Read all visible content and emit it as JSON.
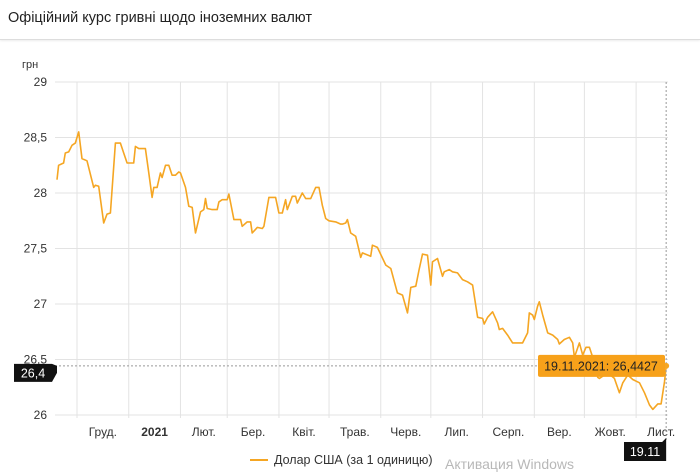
{
  "header": {
    "title": "Офіційний курс гривні щодо іноземних валют"
  },
  "colors": {
    "series": "#f5a623",
    "tooltip_bg": "#f7a11a",
    "crosshair_label_bg": "#111111",
    "grid": "#e3e3e3"
  },
  "watermark": "Активация Windows",
  "chart_data": {
    "type": "line",
    "title": "",
    "ylabel": "грн",
    "xlabel": "",
    "ylim": [
      26,
      29
    ],
    "xlim": [
      "2020-11-19",
      "2021-11-19"
    ],
    "grid": true,
    "legend_placement": "bottom",
    "y_ticks": [
      {
        "value": 26,
        "label": "26"
      },
      {
        "value": 26.5,
        "label": "26,5"
      },
      {
        "value": 27,
        "label": "27"
      },
      {
        "value": 27.5,
        "label": "27,5"
      },
      {
        "value": 28,
        "label": "28"
      },
      {
        "value": 28.5,
        "label": "28,5"
      },
      {
        "value": 29,
        "label": "29"
      }
    ],
    "x_ticks": [
      {
        "month": "2020-12",
        "label": "Груд.",
        "bold": false
      },
      {
        "month": "2021-01",
        "label": "2021",
        "bold": true
      },
      {
        "month": "2021-02",
        "label": "Лют.",
        "bold": false
      },
      {
        "month": "2021-03",
        "label": "Бер.",
        "bold": false
      },
      {
        "month": "2021-04",
        "label": "Квіт.",
        "bold": false
      },
      {
        "month": "2021-05",
        "label": "Трав.",
        "bold": false
      },
      {
        "month": "2021-06",
        "label": "Черв.",
        "bold": false
      },
      {
        "month": "2021-07",
        "label": "Лип.",
        "bold": false
      },
      {
        "month": "2021-08",
        "label": "Серп.",
        "bold": false
      },
      {
        "month": "2021-09",
        "label": "Вер.",
        "bold": false
      },
      {
        "month": "2021-10",
        "label": "Жовт.",
        "bold": false
      },
      {
        "month": "2021-11",
        "label": "Лист.",
        "bold": false
      }
    ],
    "series": [
      {
        "name": "Долар США (за 1 одиницю)",
        "points": [
          [
            "2020-11-19",
            28.12
          ],
          [
            "2020-11-20",
            28.25
          ],
          [
            "2020-11-23",
            28.27
          ],
          [
            "2020-11-24",
            28.36
          ],
          [
            "2020-11-26",
            28.37
          ],
          [
            "2020-11-28",
            28.43
          ],
          [
            "2020-11-30",
            28.45
          ],
          [
            "2020-12-02",
            28.55
          ],
          [
            "2020-12-04",
            28.31
          ],
          [
            "2020-12-07",
            28.29
          ],
          [
            "2020-12-11",
            28.05
          ],
          [
            "2020-12-12",
            28.07
          ],
          [
            "2020-12-14",
            28.06
          ],
          [
            "2020-12-17",
            27.73
          ],
          [
            "2020-12-19",
            27.81
          ],
          [
            "2020-12-21",
            27.82
          ],
          [
            "2020-12-24",
            28.45
          ],
          [
            "2020-12-27",
            28.45
          ],
          [
            "2020-12-29",
            28.36
          ],
          [
            "2020-12-31",
            28.27
          ],
          [
            "2021-01-04",
            28.27
          ],
          [
            "2021-01-05",
            28.42
          ],
          [
            "2021-01-07",
            28.4
          ],
          [
            "2021-01-11",
            28.4
          ],
          [
            "2021-01-13",
            28.18
          ],
          [
            "2021-01-15",
            27.96
          ],
          [
            "2021-01-16",
            28.05
          ],
          [
            "2021-01-18",
            28.05
          ],
          [
            "2021-01-20",
            28.18
          ],
          [
            "2021-01-21",
            28.14
          ],
          [
            "2021-01-23",
            28.25
          ],
          [
            "2021-01-25",
            28.25
          ],
          [
            "2021-01-27",
            28.16
          ],
          [
            "2021-01-29",
            28.16
          ],
          [
            "2021-01-31",
            28.19
          ],
          [
            "2021-02-01",
            28.18
          ],
          [
            "2021-02-04",
            28.05
          ],
          [
            "2021-02-06",
            27.88
          ],
          [
            "2021-02-08",
            27.87
          ],
          [
            "2021-02-10",
            27.64
          ],
          [
            "2021-02-13",
            27.83
          ],
          [
            "2021-02-15",
            27.85
          ],
          [
            "2021-02-16",
            27.95
          ],
          [
            "2021-02-17",
            27.86
          ],
          [
            "2021-02-20",
            27.85
          ],
          [
            "2021-02-23",
            27.85
          ],
          [
            "2021-02-24",
            27.92
          ],
          [
            "2021-02-26",
            27.94
          ],
          [
            "2021-03-01",
            27.94
          ],
          [
            "2021-03-02",
            27.99
          ],
          [
            "2021-03-05",
            27.76
          ],
          [
            "2021-03-09",
            27.76
          ],
          [
            "2021-03-10",
            27.7
          ],
          [
            "2021-03-13",
            27.74
          ],
          [
            "2021-03-15",
            27.74
          ],
          [
            "2021-03-16",
            27.64
          ],
          [
            "2021-03-19",
            27.69
          ],
          [
            "2021-03-22",
            27.68
          ],
          [
            "2021-03-23",
            27.7
          ],
          [
            "2021-03-26",
            27.96
          ],
          [
            "2021-03-30",
            27.96
          ],
          [
            "2021-04-01",
            27.82
          ],
          [
            "2021-04-03",
            27.82
          ],
          [
            "2021-04-05",
            27.94
          ],
          [
            "2021-04-06",
            27.85
          ],
          [
            "2021-04-09",
            27.97
          ],
          [
            "2021-04-11",
            27.97
          ],
          [
            "2021-04-12",
            27.91
          ],
          [
            "2021-04-15",
            28.0
          ],
          [
            "2021-04-17",
            27.95
          ],
          [
            "2021-04-20",
            27.95
          ],
          [
            "2021-04-23",
            28.05
          ],
          [
            "2021-04-25",
            28.05
          ],
          [
            "2021-04-27",
            27.89
          ],
          [
            "2021-04-29",
            27.77
          ],
          [
            "2021-05-01",
            27.75
          ],
          [
            "2021-05-05",
            27.74
          ],
          [
            "2021-05-08",
            27.72
          ],
          [
            "2021-05-09",
            27.72
          ],
          [
            "2021-05-11",
            27.73
          ],
          [
            "2021-05-12",
            27.76
          ],
          [
            "2021-05-14",
            27.64
          ],
          [
            "2021-05-17",
            27.61
          ],
          [
            "2021-05-20",
            27.42
          ],
          [
            "2021-05-21",
            27.46
          ],
          [
            "2021-05-26",
            27.43
          ],
          [
            "2021-05-27",
            27.53
          ],
          [
            "2021-05-30",
            27.51
          ],
          [
            "2021-06-04",
            27.35
          ],
          [
            "2021-06-07",
            27.32
          ],
          [
            "2021-06-11",
            27.1
          ],
          [
            "2021-06-14",
            27.08
          ],
          [
            "2021-06-17",
            26.92
          ],
          [
            "2021-06-19",
            27.15
          ],
          [
            "2021-06-22",
            27.16
          ],
          [
            "2021-06-24",
            27.31
          ],
          [
            "2021-06-26",
            27.45
          ],
          [
            "2021-06-29",
            27.44
          ],
          [
            "2021-07-01",
            27.17
          ],
          [
            "2021-07-02",
            27.38
          ],
          [
            "2021-07-05",
            27.41
          ],
          [
            "2021-07-08",
            27.25
          ],
          [
            "2021-07-09",
            27.29
          ],
          [
            "2021-07-12",
            27.31
          ],
          [
            "2021-07-14",
            27.29
          ],
          [
            "2021-07-17",
            27.28
          ],
          [
            "2021-07-20",
            27.22
          ],
          [
            "2021-07-23",
            27.2
          ],
          [
            "2021-07-26",
            27.17
          ],
          [
            "2021-07-29",
            26.88
          ],
          [
            "2021-08-01",
            26.87
          ],
          [
            "2021-08-02",
            26.82
          ],
          [
            "2021-08-04",
            26.88
          ],
          [
            "2021-08-07",
            26.93
          ],
          [
            "2021-08-10",
            26.83
          ],
          [
            "2021-08-11",
            26.77
          ],
          [
            "2021-08-13",
            26.78
          ],
          [
            "2021-08-16",
            26.72
          ],
          [
            "2021-08-19",
            26.65
          ],
          [
            "2021-08-25",
            26.65
          ],
          [
            "2021-08-28",
            26.74
          ],
          [
            "2021-08-29",
            26.92
          ],
          [
            "2021-08-31",
            26.9
          ],
          [
            "2021-09-01",
            26.86
          ],
          [
            "2021-09-03",
            26.98
          ],
          [
            "2021-09-04",
            27.02
          ],
          [
            "2021-09-06",
            26.9
          ],
          [
            "2021-09-09",
            26.74
          ],
          [
            "2021-09-12",
            26.72
          ],
          [
            "2021-09-15",
            26.68
          ],
          [
            "2021-09-16",
            26.64
          ],
          [
            "2021-09-19",
            26.68
          ],
          [
            "2021-09-22",
            26.7
          ],
          [
            "2021-09-24",
            26.65
          ],
          [
            "2021-09-25",
            26.52
          ],
          [
            "2021-09-28",
            26.65
          ],
          [
            "2021-09-30",
            26.54
          ],
          [
            "2021-10-02",
            26.61
          ],
          [
            "2021-10-04",
            26.61
          ],
          [
            "2021-10-06",
            26.52
          ],
          [
            "2021-10-09",
            26.34
          ],
          [
            "2021-10-10",
            26.33
          ],
          [
            "2021-10-15",
            26.38
          ],
          [
            "2021-10-19",
            26.33
          ],
          [
            "2021-10-22",
            26.2
          ],
          [
            "2021-10-24",
            26.29
          ],
          [
            "2021-10-27",
            26.36
          ],
          [
            "2021-10-30",
            26.32
          ],
          [
            "2021-11-03",
            26.29
          ],
          [
            "2021-11-06",
            26.2
          ],
          [
            "2021-11-09",
            26.09
          ],
          [
            "2021-11-11",
            26.05
          ],
          [
            "2021-11-14",
            26.1
          ],
          [
            "2021-11-16",
            26.1
          ],
          [
            "2021-11-18",
            26.3
          ],
          [
            "2021-11-19",
            26.4427
          ]
        ]
      }
    ],
    "crosshair": {
      "date": "2021-11-19",
      "value": 26.4427,
      "y_label": "26,4",
      "x_label": "19.11",
      "tooltip": "19.11.2021: 26,4427"
    }
  }
}
